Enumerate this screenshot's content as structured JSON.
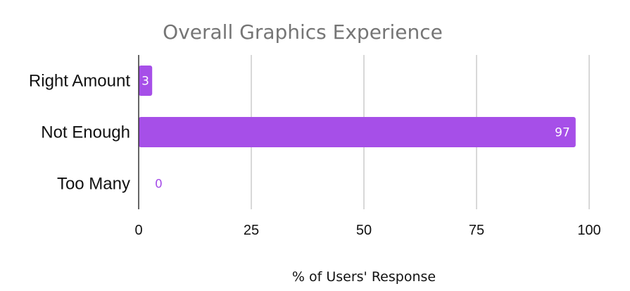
{
  "chart_data": {
    "type": "bar",
    "orientation": "horizontal",
    "title": "Overall Graphics Experience",
    "xlabel": "% of Users' Response",
    "ylabel": "",
    "categories": [
      "Right Amount",
      "Not Enough",
      "Too Many"
    ],
    "values": [
      3,
      97,
      0
    ],
    "xlim": [
      0,
      100
    ],
    "x_ticks": [
      "0",
      "25",
      "50",
      "75",
      "100"
    ],
    "grid": "vertical",
    "legend": "none",
    "colors": {
      "bar": "#a64fe8",
      "label_inside": "#ffffff",
      "label_outside": "#a64fe8",
      "grid": "#cccccc",
      "axis": "#333333"
    }
  }
}
